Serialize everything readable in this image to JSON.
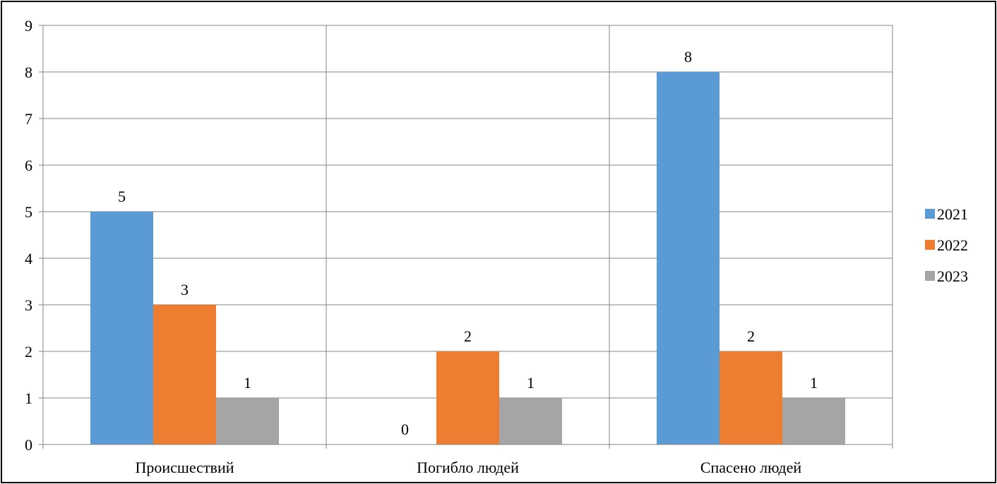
{
  "chart_data": {
    "type": "bar",
    "categories": [
      "Происшествий",
      "Погибло людей",
      "Спасено людей"
    ],
    "series": [
      {
        "name": "2021",
        "values": [
          5,
          0,
          8
        ],
        "color": "#5B9BD5"
      },
      {
        "name": "2022",
        "values": [
          3,
          2,
          2
        ],
        "color": "#ED7D31"
      },
      {
        "name": "2023",
        "values": [
          1,
          1,
          1
        ],
        "color": "#A5A5A5"
      }
    ],
    "ylim": [
      0,
      9
    ],
    "yticks": [
      "0",
      "1",
      "2",
      "3",
      "4",
      "5",
      "6",
      "7",
      "8",
      "9"
    ],
    "grid": true,
    "legend_position": "right",
    "data_labels": true
  }
}
